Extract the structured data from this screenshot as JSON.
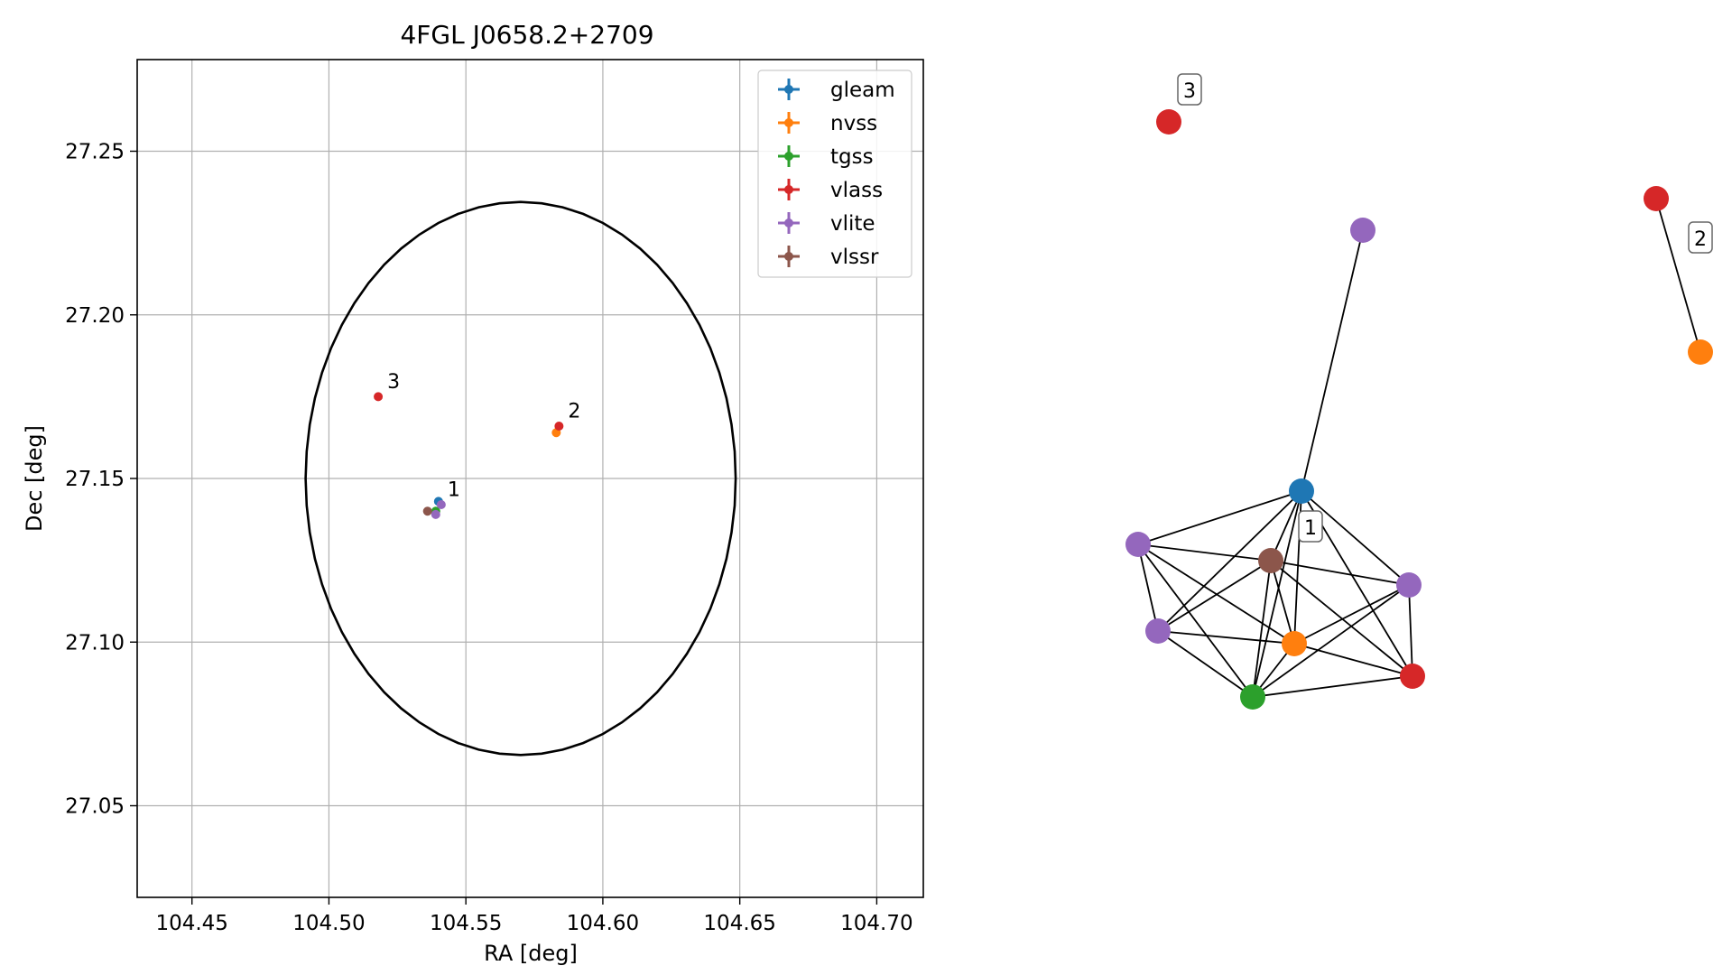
{
  "chart_data": [
    {
      "type": "scatter",
      "title": "4FGL J0658.2+2709",
      "xlabel": "RA [deg]",
      "ylabel": "Dec [deg]",
      "xlim": [
        104.43,
        104.717
      ],
      "ylim": [
        27.022,
        27.278
      ],
      "xticks": [
        "104.45",
        "104.50",
        "104.55",
        "104.60",
        "104.65",
        "104.70"
      ],
      "yticks": [
        "27.05",
        "27.10",
        "27.15",
        "27.20",
        "27.25"
      ],
      "grid": true,
      "legend": {
        "placement": "top-right",
        "entries": [
          "gleam",
          "nvss",
          "tgss",
          "vlass",
          "vlite",
          "vlssr"
        ]
      },
      "series": [
        {
          "name": "gleam",
          "color": "#1f77b4",
          "points": [
            [
              104.54,
              27.143
            ]
          ]
        },
        {
          "name": "nvss",
          "color": "#ff7f0e",
          "points": [
            [
              104.583,
              27.164
            ]
          ]
        },
        {
          "name": "tgss",
          "color": "#2ca02c",
          "points": [
            [
              104.539,
              27.14
            ]
          ]
        },
        {
          "name": "vlass",
          "color": "#d62728",
          "points": [
            [
              104.518,
              27.175
            ],
            [
              104.584,
              27.166
            ]
          ]
        },
        {
          "name": "vlite",
          "color": "#9467bd",
          "points": [
            [
              104.541,
              27.142
            ],
            [
              104.539,
              27.139
            ]
          ]
        },
        {
          "name": "vlssr",
          "color": "#8c564b",
          "points": [
            [
              104.536,
              27.14
            ]
          ]
        }
      ],
      "ellipse": {
        "center": [
          104.57,
          27.15
        ],
        "semi_axes": [
          0.0785,
          0.0845
        ]
      },
      "annotations": [
        {
          "text": "1",
          "at": [
            104.542,
            27.143
          ]
        },
        {
          "text": "2",
          "at": [
            104.586,
            27.167
          ]
        },
        {
          "text": "3",
          "at": [
            104.52,
            27.176
          ]
        }
      ]
    },
    {
      "type": "network",
      "node_labels": [
        {
          "text": "1",
          "near": 1
        },
        {
          "text": "2",
          "near": 12
        },
        {
          "text": "3",
          "near": 10
        }
      ],
      "nodes": [
        {
          "id": 0,
          "catalog": "gleam",
          "color": "#1f77b4"
        },
        {
          "id": 1,
          "catalog": "vlssr",
          "color": "#8c564b"
        },
        {
          "id": 2,
          "catalog": "vlite",
          "color": "#9467bd"
        },
        {
          "id": 3,
          "catalog": "vlite",
          "color": "#9467bd"
        },
        {
          "id": 4,
          "catalog": "vlite",
          "color": "#9467bd"
        },
        {
          "id": 5,
          "catalog": "nvss",
          "color": "#ff7f0e"
        },
        {
          "id": 6,
          "catalog": "vlass",
          "color": "#d62728"
        },
        {
          "id": 7,
          "catalog": "tgss",
          "color": "#2ca02c"
        },
        {
          "id": 8,
          "catalog": "vlite",
          "color": "#9467bd"
        },
        {
          "id": 10,
          "catalog": "vlass",
          "color": "#d62728"
        },
        {
          "id": 11,
          "catalog": "vlass",
          "color": "#d62728"
        },
        {
          "id": 12,
          "catalog": "nvss",
          "color": "#ff7f0e"
        }
      ],
      "edges": [
        [
          0,
          1
        ],
        [
          0,
          2
        ],
        [
          0,
          3
        ],
        [
          0,
          4
        ],
        [
          0,
          5
        ],
        [
          0,
          6
        ],
        [
          0,
          7
        ],
        [
          0,
          8
        ],
        [
          1,
          2
        ],
        [
          1,
          3
        ],
        [
          1,
          4
        ],
        [
          1,
          5
        ],
        [
          1,
          6
        ],
        [
          1,
          7
        ],
        [
          2,
          4
        ],
        [
          2,
          5
        ],
        [
          2,
          7
        ],
        [
          3,
          5
        ],
        [
          3,
          6
        ],
        [
          3,
          7
        ],
        [
          4,
          5
        ],
        [
          4,
          7
        ],
        [
          5,
          6
        ],
        [
          5,
          7
        ],
        [
          6,
          7
        ],
        [
          11,
          12
        ]
      ]
    }
  ]
}
